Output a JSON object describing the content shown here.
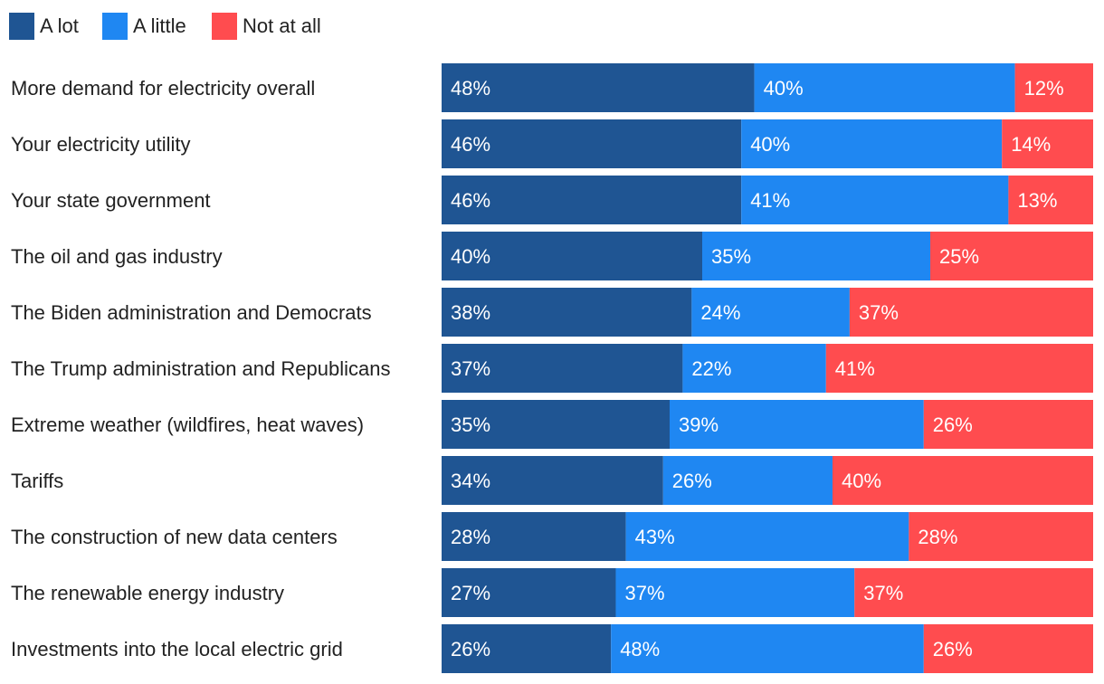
{
  "chart_data": {
    "type": "bar",
    "orientation": "horizontal",
    "stacked": true,
    "legend_position": "top-left",
    "categories": [
      "More demand for electricity overall",
      "Your electricity utility",
      "Your state government",
      "The oil and gas industry",
      "The Biden administration and Democrats",
      "The Trump administration and Republicans",
      "Extreme weather (wildfires, heat waves)",
      "Tariffs",
      "The construction of new data centers",
      "The renewable energy industry",
      "Investments into the local electric grid"
    ],
    "series": [
      {
        "name": "A lot",
        "color": "#1f5593",
        "values": [
          48,
          46,
          46,
          40,
          38,
          37,
          35,
          34,
          28,
          27,
          26
        ]
      },
      {
        "name": "A little",
        "color": "#1f87f2",
        "values": [
          40,
          40,
          41,
          35,
          24,
          22,
          39,
          26,
          43,
          37,
          48
        ]
      },
      {
        "name": "Not at all",
        "color": "#ff4c4f",
        "values": [
          12,
          14,
          13,
          25,
          37,
          41,
          26,
          40,
          28,
          37,
          26
        ]
      }
    ],
    "value_suffix": "%",
    "title": "",
    "xlabel": "",
    "ylabel": "",
    "grid": false
  }
}
